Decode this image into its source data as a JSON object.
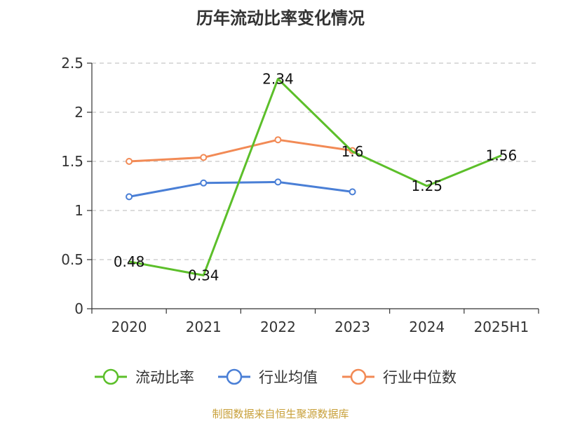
{
  "chart_data": {
    "type": "line",
    "title": "历年流动比率变化情况",
    "categories": [
      "2020",
      "2021",
      "2022",
      "2023",
      "2024",
      "2025H1"
    ],
    "ylim": [
      0,
      2.5
    ],
    "yticks": [
      "0",
      "0.5",
      "1",
      "1.5",
      "2",
      "2.5"
    ],
    "grid": true,
    "legend_position": "bottom",
    "series": [
      {
        "name": "流动比率",
        "color": "#5cbf2a",
        "values": [
          0.48,
          0.34,
          2.34,
          1.6,
          1.25,
          1.56
        ],
        "labels": [
          "0.48",
          "0.34",
          "2.34",
          "1.6",
          "1.25",
          "1.56"
        ],
        "show_labels": true
      },
      {
        "name": "行业均值",
        "color": "#4a7fd6",
        "values": [
          1.14,
          1.28,
          1.29,
          1.19,
          null,
          null
        ],
        "show_labels": false
      },
      {
        "name": "行业中位数",
        "color": "#f28a55",
        "values": [
          1.5,
          1.54,
          1.72,
          1.61,
          null,
          null
        ],
        "show_labels": false
      }
    ]
  },
  "footer": {
    "source": "制图数据来自恒生聚源数据库"
  }
}
